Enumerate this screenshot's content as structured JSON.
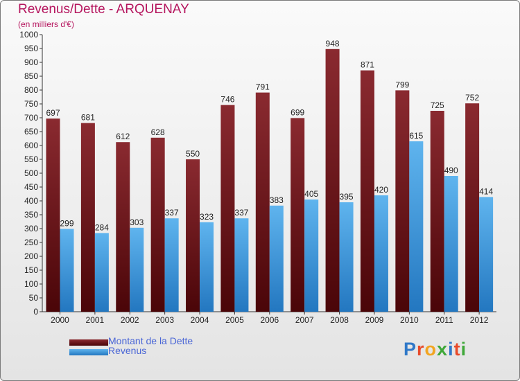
{
  "colors": {
    "title": "#b5155e",
    "dette_dark": "#4a0508",
    "dette_light": "#8a2a30",
    "revenus_dark": "#2377c0",
    "revenus_light": "#5fb4ee",
    "legend_text": "#4a66d6"
  },
  "header": {
    "title": "Revenus/Dette - ARQUENAY",
    "subtitle": "(en milliers d'€)"
  },
  "legend": {
    "items": [
      {
        "label": "Montant de la Dette"
      },
      {
        "label": "Revenus"
      }
    ]
  },
  "logo": {
    "letters": [
      "P",
      "r",
      "o",
      "x",
      "i",
      "t",
      "i"
    ]
  },
  "chart_data": {
    "type": "bar",
    "title": "Revenus/Dette - ARQUENAY",
    "subtitle": "(en milliers d'€)",
    "xlabel": "",
    "ylabel": "",
    "ylim": [
      0,
      1000
    ],
    "ytick_step": 50,
    "grid": false,
    "legend_position": "bottom-left",
    "categories": [
      "2000",
      "2001",
      "2002",
      "2003",
      "2004",
      "2005",
      "2006",
      "2007",
      "2008",
      "2009",
      "2010",
      "2011",
      "2012"
    ],
    "series": [
      {
        "name": "Montant de la Dette",
        "values": [
          697,
          681,
          612,
          628,
          550,
          746,
          791,
          699,
          948,
          871,
          799,
          725,
          752
        ]
      },
      {
        "name": "Revenus",
        "values": [
          299,
          284,
          303,
          337,
          323,
          337,
          383,
          405,
          395,
          420,
          615,
          490,
          414
        ]
      }
    ]
  }
}
